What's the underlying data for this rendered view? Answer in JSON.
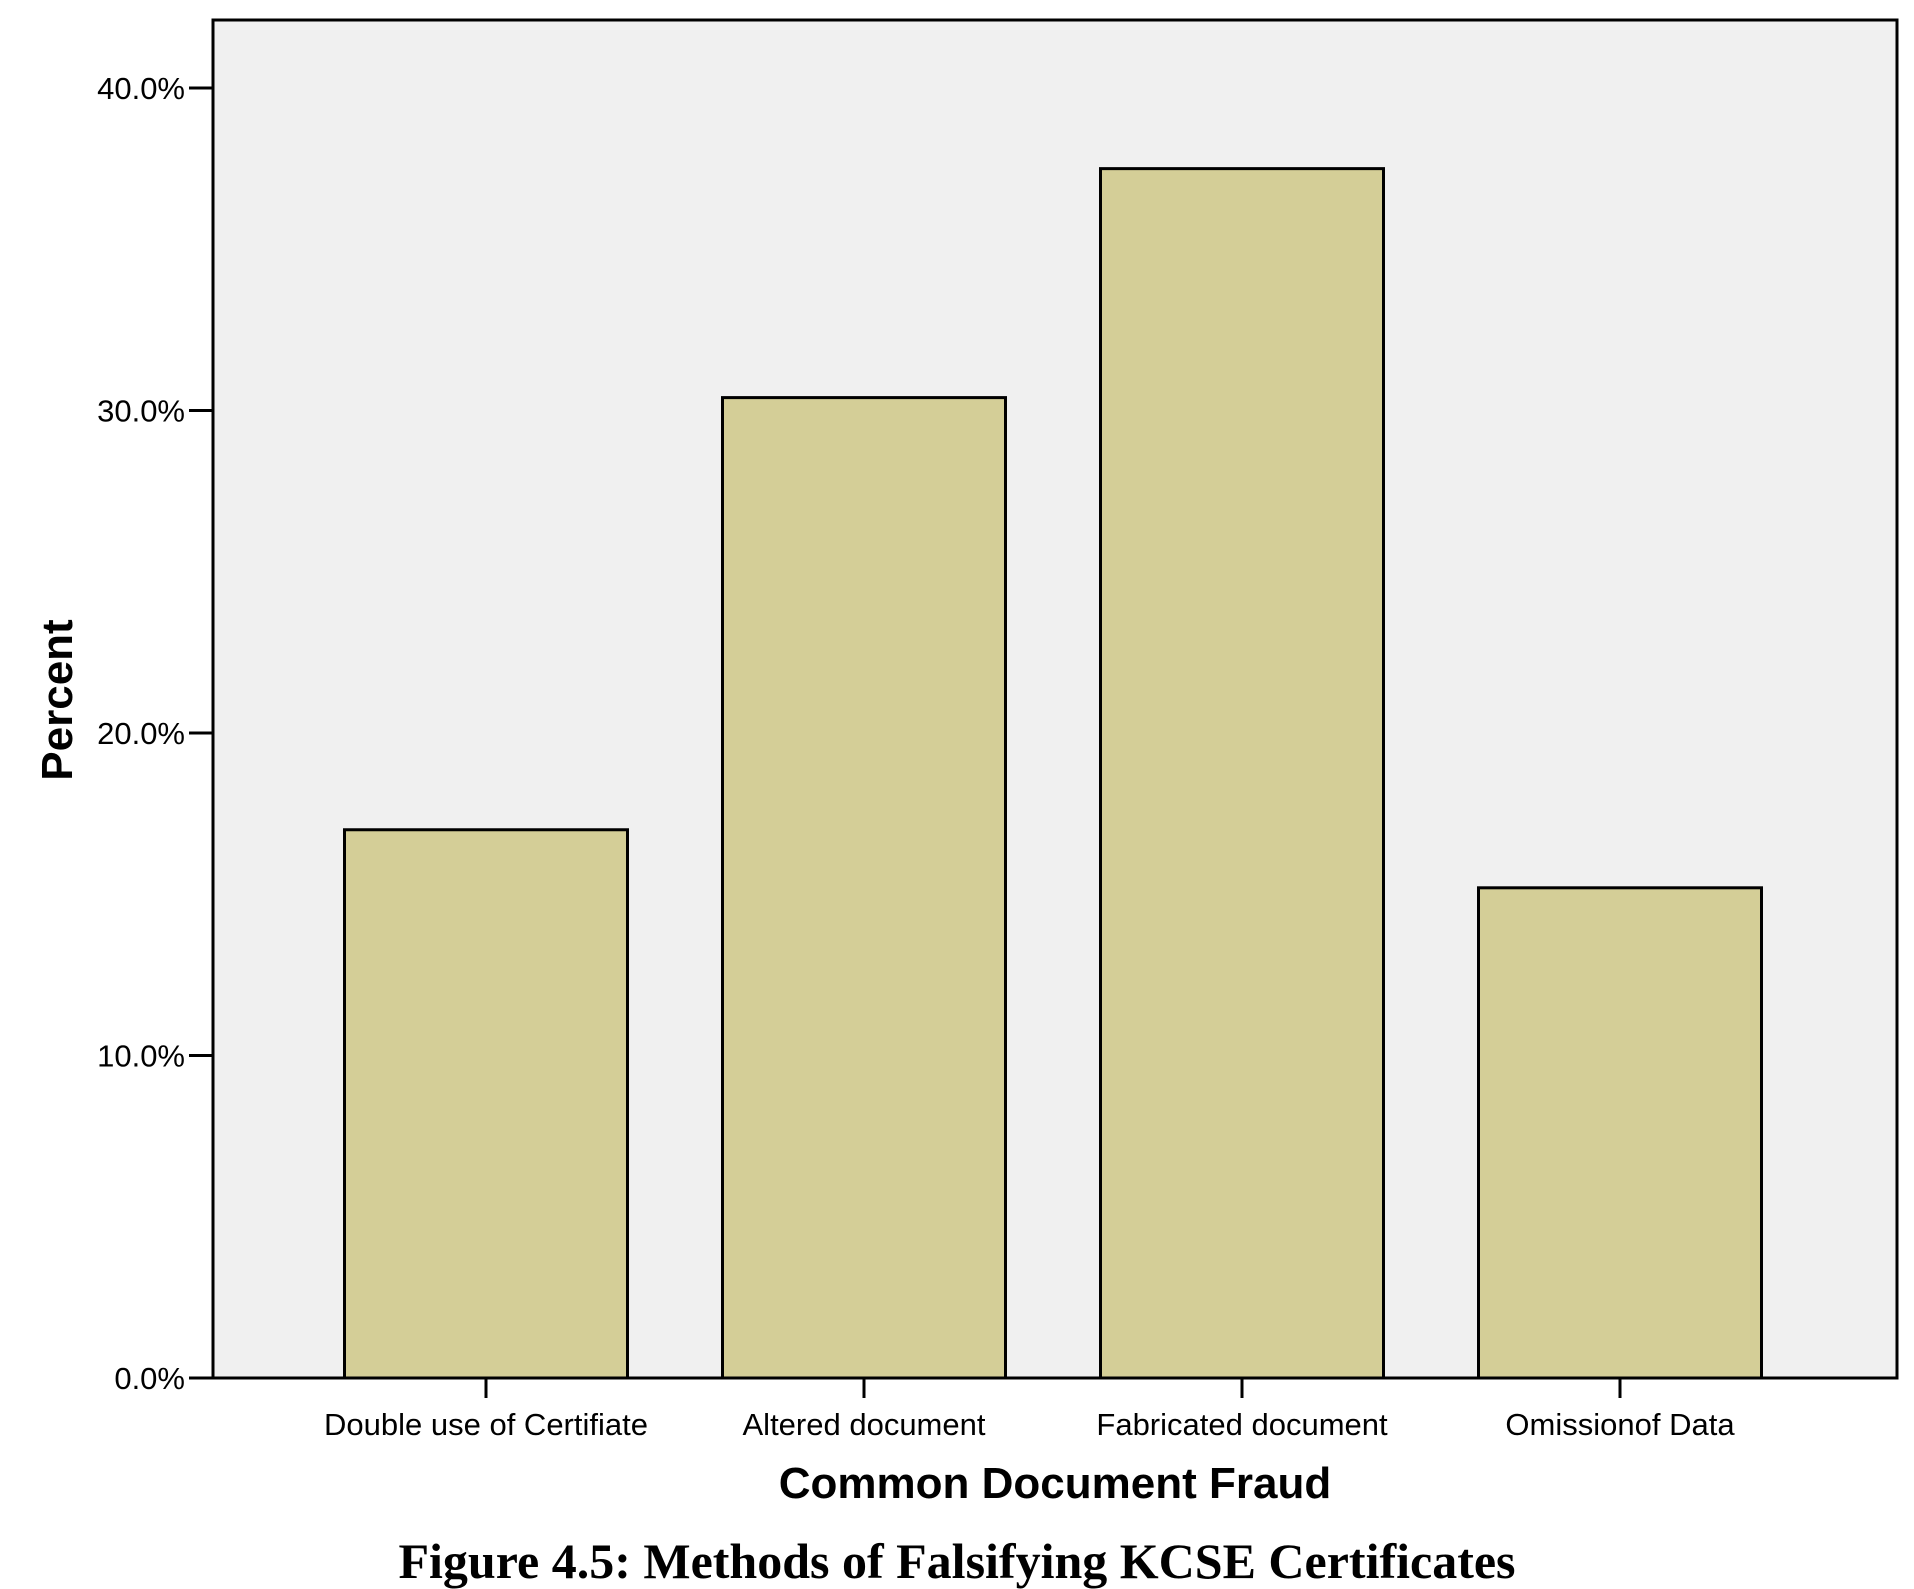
{
  "chart_data": {
    "type": "bar",
    "categories": [
      "Double use of Certifiate",
      "Altered document",
      "Fabricated document",
      "Omissionof Data"
    ],
    "values": [
      17.0,
      30.4,
      37.5,
      15.2
    ],
    "xlabel": "Common Document Fraud",
    "ylabel": "Percent",
    "ylim": [
      0,
      42
    ],
    "yticks": [
      0,
      10,
      20,
      30,
      40
    ],
    "ytick_labels": [
      "0.0%",
      "10.0%",
      "20.0%",
      "30.0%",
      "40.0%"
    ],
    "grid": false,
    "legend": "none",
    "colors": {
      "bar_fill": "#d4ce97",
      "bar_stroke": "#000000",
      "plot_background": "#f0f0f0"
    }
  },
  "caption": "Figure 4.5: Methods of Falsifying KCSE Certificates"
}
